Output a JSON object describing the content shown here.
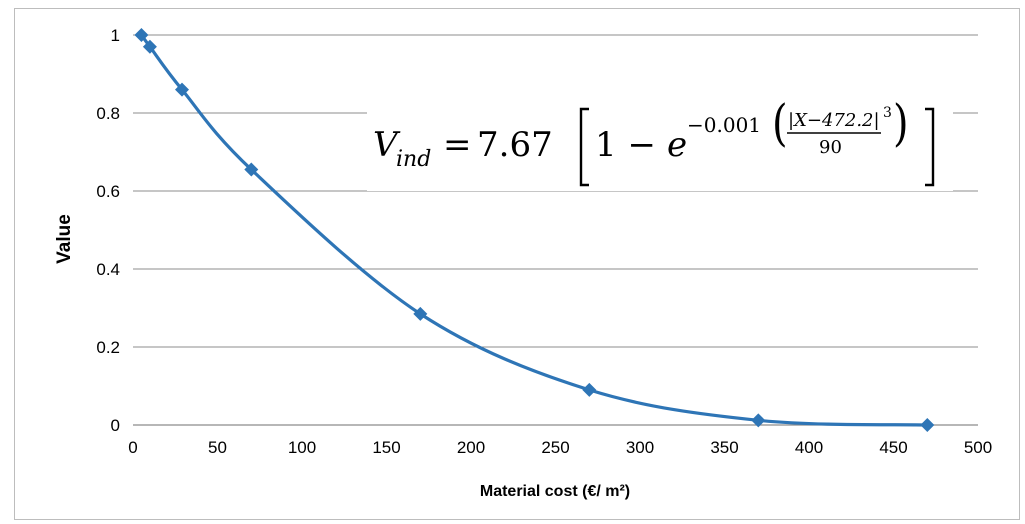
{
  "chart_data": {
    "type": "line",
    "title": "",
    "xlabel": "Material cost (€/ m²)",
    "ylabel": "Value",
    "xlim": [
      0,
      500
    ],
    "ylim": [
      0,
      1
    ],
    "x_ticks": [
      "0",
      "50",
      "100",
      "150",
      "200",
      "250",
      "300",
      "350",
      "400",
      "450",
      "500"
    ],
    "y_ticks": [
      "0",
      "0.2",
      "0.4",
      "0.6",
      "0.8",
      "1"
    ],
    "grid": "horizontal",
    "legend": "none",
    "series": [
      {
        "color": "#2e75b6",
        "marker": "diamond",
        "x": [
          5,
          10,
          29,
          70,
          170,
          270,
          370,
          470
        ],
        "y": [
          1.0,
          0.97,
          0.86,
          0.655,
          0.285,
          0.09,
          0.012,
          0.0
        ]
      }
    ],
    "annotation": {
      "lhs_var": "V",
      "lhs_sub": "ind",
      "equals": "=",
      "coef": "7.67",
      "one_minus": "1 −",
      "base": "e",
      "exp_prefix": "−0.001",
      "numerator": "|X−472.2|",
      "power": "3",
      "denominator": "90"
    }
  }
}
